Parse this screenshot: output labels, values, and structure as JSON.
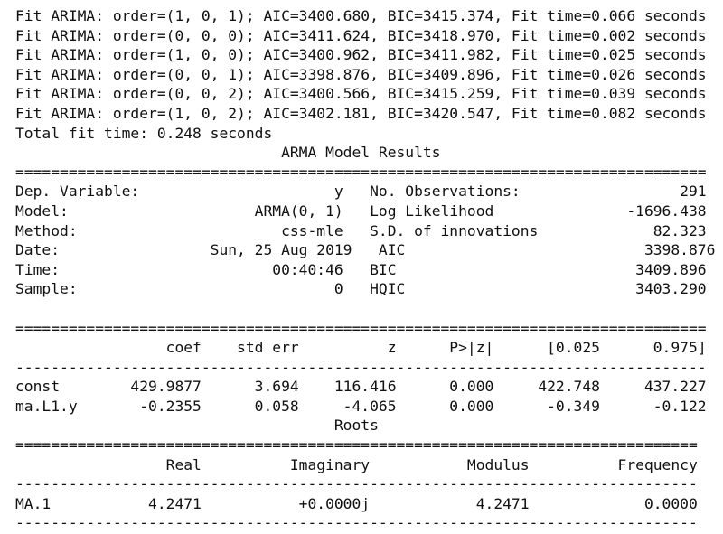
{
  "lines": [
    "Fit ARIMA: order=(1, 0, 1); AIC=3400.680, BIC=3415.374, Fit time=0.066 seconds",
    "Fit ARIMA: order=(0, 0, 0); AIC=3411.624, BIC=3418.970, Fit time=0.002 seconds",
    "Fit ARIMA: order=(1, 0, 0); AIC=3400.962, BIC=3411.982, Fit time=0.025 seconds",
    "Fit ARIMA: order=(0, 0, 1); AIC=3398.876, BIC=3409.896, Fit time=0.026 seconds",
    "Fit ARIMA: order=(0, 0, 2); AIC=3400.566, BIC=3415.259, Fit time=0.039 seconds",
    "Fit ARIMA: order=(1, 0, 2); AIC=3402.181, BIC=3420.547, Fit time=0.082 seconds",
    "Total fit time: 0.248 seconds",
    "                              ARMA Model Results                              ",
    "==============================================================================",
    "Dep. Variable:                      y   No. Observations:                  291",
    "Model:                     ARMA(0, 1)   Log Likelihood               -1696.438",
    "Method:                       css-mle   S.D. of innovations             82.323",
    "Date:                 Sun, 25 Aug 2019   AIC                           3398.876",
    "Time:                        00:40:46   BIC                           3409.896",
    "Sample:                             0   HQIC                          3403.290",
    "",
    "==============================================================================",
    "                 coef    std err          z      P>|z|      [0.025      0.975]",
    "------------------------------------------------------------------------------",
    "const        429.9877      3.694    116.416      0.000     422.748     437.227",
    "ma.L1.y       -0.2355      0.058     -4.065      0.000      -0.349      -0.122",
    "                                    Roots                                    ",
    "=============================================================================",
    "                 Real          Imaginary           Modulus          Frequency",
    "-----------------------------------------------------------------------------",
    "MA.1           4.2471           +0.0000j            4.2471             0.0000",
    "-----------------------------------------------------------------------------"
  ]
}
